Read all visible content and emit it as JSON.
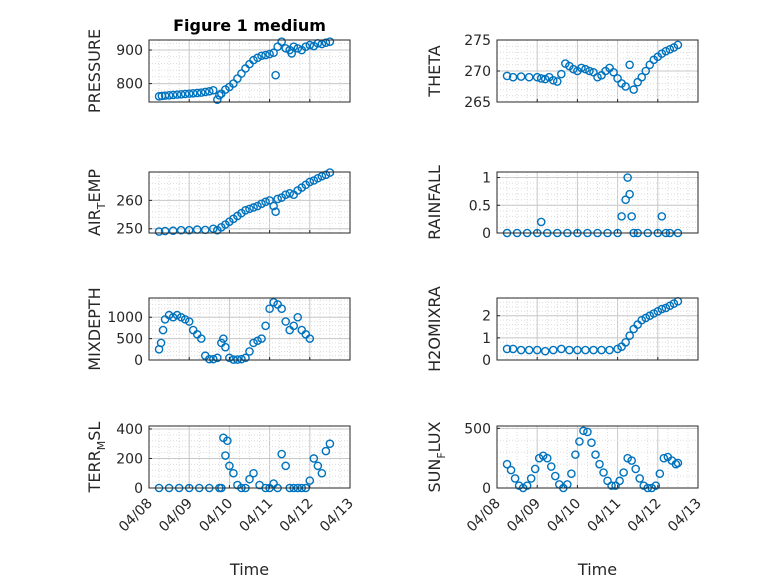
{
  "figure_title": "Figure 1 medium",
  "series_color": "#0072BD",
  "x_tick_labels": [
    "04/08",
    "04/09",
    "04/10",
    "04/11",
    "04/12",
    "04/13"
  ],
  "x_label": "Time",
  "chart_data": [
    {
      "type": "scatter",
      "title": "Figure 1 medium",
      "ylabel": "PRESSURE",
      "xlabel": "",
      "x_unit": "day",
      "xlim": [
        0,
        5
      ],
      "ylim": [
        745,
        930
      ],
      "yticks": [
        800,
        900
      ],
      "grid": true,
      "x": [
        0.25,
        0.32,
        0.4,
        0.5,
        0.6,
        0.7,
        0.8,
        0.9,
        1.0,
        1.1,
        1.2,
        1.3,
        1.4,
        1.5,
        1.6,
        1.7,
        1.75,
        1.8,
        1.9,
        2.0,
        2.1,
        2.2,
        2.3,
        2.4,
        2.5,
        2.6,
        2.7,
        2.8,
        2.9,
        3.0,
        3.1,
        3.15,
        3.2,
        3.3,
        3.4,
        3.5,
        3.55,
        3.6,
        3.7,
        3.8,
        3.9,
        4.0,
        4.1,
        4.2,
        4.3,
        4.4,
        4.5
      ],
      "y": [
        762,
        763,
        764,
        765,
        766,
        767,
        768,
        769,
        770,
        771,
        772,
        773,
        775,
        777,
        780,
        752,
        765,
        770,
        782,
        790,
        800,
        815,
        830,
        845,
        858,
        870,
        877,
        883,
        885,
        888,
        892,
        825,
        910,
        925,
        905,
        900,
        890,
        910,
        905,
        900,
        910,
        915,
        912,
        920,
        918,
        922,
        925
      ]
    },
    {
      "type": "scatter",
      "title": "",
      "ylabel": "THETA",
      "xlabel": "",
      "x_unit": "day",
      "xlim": [
        0,
        5
      ],
      "ylim": [
        265,
        275
      ],
      "yticks": [
        265,
        270,
        275
      ],
      "grid": true,
      "x": [
        0.25,
        0.4,
        0.6,
        0.8,
        1.0,
        1.1,
        1.2,
        1.3,
        1.4,
        1.5,
        1.6,
        1.7,
        1.8,
        1.9,
        2.0,
        2.1,
        2.2,
        2.3,
        2.4,
        2.5,
        2.6,
        2.7,
        2.8,
        2.9,
        3.0,
        3.1,
        3.2,
        3.3,
        3.4,
        3.5,
        3.6,
        3.7,
        3.8,
        3.9,
        4.0,
        4.1,
        4.2,
        4.3,
        4.4,
        4.5
      ],
      "y": [
        269.2,
        269.0,
        269.1,
        269.0,
        269.0,
        268.8,
        268.7,
        269.0,
        268.5,
        268.3,
        269.5,
        271.2,
        270.8,
        270.3,
        270.0,
        270.5,
        270.3,
        270.0,
        269.8,
        269.0,
        269.3,
        270.0,
        270.5,
        269.8,
        268.8,
        268.0,
        267.5,
        271.0,
        267.0,
        268.2,
        269.0,
        270.0,
        271.0,
        271.8,
        272.3,
        272.8,
        273.2,
        273.5,
        273.8,
        274.2
      ]
    },
    {
      "type": "scatter",
      "title": "",
      "ylabel": "AIR_TEMP",
      "ylabel_sub": "T",
      "ylabel_parts": [
        "AIR",
        "EMP"
      ],
      "xlabel": "",
      "x_unit": "day",
      "xlim": [
        0,
        5
      ],
      "ylim": [
        248.5,
        270
      ],
      "yticks": [
        250,
        260
      ],
      "grid": true,
      "x": [
        0.25,
        0.4,
        0.6,
        0.8,
        1.0,
        1.2,
        1.4,
        1.6,
        1.7,
        1.8,
        1.9,
        2.0,
        2.1,
        2.2,
        2.3,
        2.4,
        2.5,
        2.6,
        2.7,
        2.8,
        2.9,
        3.0,
        3.1,
        3.15,
        3.2,
        3.3,
        3.4,
        3.5,
        3.6,
        3.7,
        3.8,
        3.9,
        4.0,
        4.1,
        4.2,
        4.3,
        4.4,
        4.5
      ],
      "y": [
        249.0,
        249.2,
        249.3,
        249.5,
        249.5,
        249.7,
        249.6,
        250.0,
        249.5,
        250.5,
        251.5,
        252.5,
        253.5,
        254.5,
        255.5,
        256.5,
        257.0,
        257.5,
        258.0,
        258.8,
        259.5,
        260.0,
        258.0,
        256.0,
        260.5,
        261.0,
        262.0,
        262.5,
        262.0,
        263.5,
        264.5,
        265.5,
        266.5,
        267.0,
        267.8,
        268.5,
        269.0,
        269.8
      ]
    },
    {
      "type": "scatter",
      "title": "",
      "ylabel": "RAINFALL",
      "xlabel": "",
      "x_unit": "day",
      "xlim": [
        0,
        5
      ],
      "ylim": [
        0,
        1.1
      ],
      "yticks": [
        0,
        0.5,
        1
      ],
      "ytick_labels": [
        "0",
        "0.5",
        "1"
      ],
      "grid": true,
      "x": [
        0.25,
        0.5,
        0.75,
        1.0,
        1.1,
        1.25,
        1.5,
        1.75,
        2.0,
        2.25,
        2.5,
        2.75,
        3.0,
        3.1,
        3.2,
        3.25,
        3.3,
        3.35,
        3.4,
        3.5,
        3.75,
        4.0,
        4.1,
        4.2,
        4.3,
        4.5
      ],
      "y": [
        0,
        0,
        0,
        0,
        0.2,
        0,
        0,
        0,
        0,
        0,
        0,
        0,
        0,
        0.3,
        0.6,
        1.0,
        0.7,
        0.3,
        0,
        0,
        0,
        0,
        0.3,
        0,
        0,
        0
      ]
    },
    {
      "type": "scatter",
      "title": "",
      "ylabel": "MIXDEPTH",
      "xlabel": "",
      "x_unit": "day",
      "xlim": [
        0,
        5
      ],
      "ylim": [
        0,
        1450
      ],
      "yticks": [
        0,
        500,
        1000
      ],
      "grid": true,
      "x": [
        0.25,
        0.3,
        0.35,
        0.4,
        0.5,
        0.6,
        0.7,
        0.8,
        0.9,
        1.0,
        1.1,
        1.2,
        1.3,
        1.4,
        1.5,
        1.6,
        1.7,
        1.8,
        1.85,
        1.9,
        2.0,
        2.1,
        2.2,
        2.3,
        2.4,
        2.5,
        2.6,
        2.7,
        2.8,
        2.9,
        3.0,
        3.1,
        3.2,
        3.3,
        3.4,
        3.5,
        3.6,
        3.7,
        3.8,
        3.9,
        4.0
      ],
      "y": [
        250,
        400,
        700,
        950,
        1050,
        1000,
        1050,
        1000,
        950,
        900,
        700,
        600,
        500,
        100,
        20,
        20,
        50,
        400,
        500,
        300,
        50,
        10,
        10,
        20,
        50,
        200,
        400,
        450,
        500,
        800,
        1200,
        1350,
        1300,
        1200,
        900,
        700,
        800,
        1000,
        700,
        600,
        500
      ]
    },
    {
      "type": "scatter",
      "title": "",
      "ylabel": "H2OMIXRA",
      "xlabel": "",
      "x_unit": "day",
      "xlim": [
        0,
        5
      ],
      "ylim": [
        0,
        2.8
      ],
      "yticks": [
        0,
        1,
        2
      ],
      "grid": true,
      "x": [
        0.25,
        0.4,
        0.6,
        0.8,
        1.0,
        1.2,
        1.4,
        1.6,
        1.8,
        2.0,
        2.2,
        2.4,
        2.6,
        2.8,
        3.0,
        3.1,
        3.2,
        3.3,
        3.4,
        3.5,
        3.6,
        3.7,
        3.8,
        3.9,
        4.0,
        4.1,
        4.2,
        4.3,
        4.4,
        4.5
      ],
      "y": [
        0.5,
        0.5,
        0.45,
        0.45,
        0.45,
        0.4,
        0.45,
        0.5,
        0.45,
        0.45,
        0.45,
        0.45,
        0.45,
        0.45,
        0.5,
        0.6,
        0.8,
        1.1,
        1.4,
        1.6,
        1.8,
        1.9,
        2.0,
        2.1,
        2.2,
        2.3,
        2.35,
        2.45,
        2.55,
        2.65
      ]
    },
    {
      "type": "scatter",
      "title": "",
      "ylabel": "TERR_MSL",
      "ylabel_sub": "M",
      "ylabel_parts": [
        "TERR",
        "SL"
      ],
      "xlabel": "Time",
      "x_unit": "day",
      "xlim": [
        0,
        5
      ],
      "ylim": [
        0,
        420
      ],
      "yticks": [
        0,
        200,
        400
      ],
      "grid": true,
      "x": [
        0.25,
        0.5,
        0.75,
        1.0,
        1.25,
        1.5,
        1.75,
        1.8,
        1.85,
        1.9,
        1.95,
        2.0,
        2.1,
        2.2,
        2.3,
        2.4,
        2.5,
        2.6,
        2.75,
        2.9,
        3.0,
        3.1,
        3.2,
        3.3,
        3.4,
        3.5,
        3.6,
        3.7,
        3.8,
        3.9,
        4.0,
        4.1,
        4.2,
        4.3,
        4.4,
        4.5
      ],
      "y": [
        0,
        0,
        0,
        0,
        0,
        0,
        0,
        0,
        340,
        220,
        320,
        150,
        100,
        20,
        0,
        0,
        60,
        100,
        20,
        0,
        0,
        30,
        0,
        230,
        150,
        0,
        0,
        0,
        0,
        0,
        50,
        200,
        150,
        100,
        250,
        300
      ]
    },
    {
      "type": "scatter",
      "title": "",
      "ylabel": "SUN_FLUX",
      "ylabel_sub": "F",
      "ylabel_parts": [
        "SUN",
        "LUX"
      ],
      "xlabel": "Time",
      "x_unit": "day",
      "xlim": [
        0,
        5
      ],
      "ylim": [
        0,
        520
      ],
      "yticks": [
        0,
        500
      ],
      "grid": true,
      "x": [
        0.25,
        0.35,
        0.45,
        0.55,
        0.65,
        0.75,
        0.85,
        0.95,
        1.05,
        1.15,
        1.25,
        1.35,
        1.45,
        1.55,
        1.65,
        1.75,
        1.85,
        1.95,
        2.05,
        2.15,
        2.25,
        2.35,
        2.45,
        2.55,
        2.65,
        2.75,
        2.85,
        2.95,
        3.05,
        3.15,
        3.25,
        3.35,
        3.45,
        3.55,
        3.65,
        3.75,
        3.85,
        3.95,
        4.05,
        4.15,
        4.25,
        4.35,
        4.45,
        4.5
      ],
      "y": [
        200,
        150,
        80,
        20,
        0,
        20,
        80,
        160,
        250,
        270,
        250,
        180,
        100,
        30,
        0,
        30,
        120,
        280,
        390,
        480,
        470,
        380,
        280,
        200,
        130,
        60,
        20,
        20,
        60,
        130,
        250,
        230,
        160,
        80,
        20,
        0,
        0,
        20,
        120,
        250,
        260,
        230,
        200,
        210
      ]
    }
  ]
}
